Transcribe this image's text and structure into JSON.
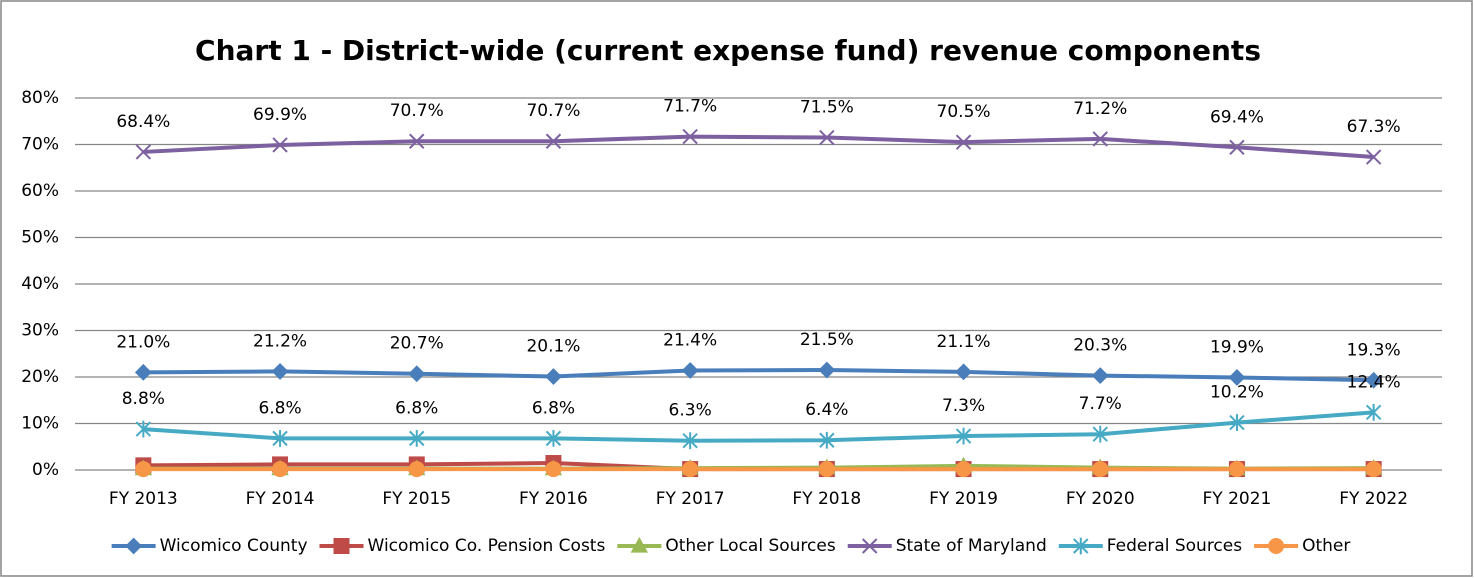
{
  "chart_data": {
    "type": "line",
    "title": "Chart 1 - District-wide (current expense fund) revenue components",
    "categories": [
      "FY 2013",
      "FY 2014",
      "FY 2015",
      "FY 2016",
      "FY 2017",
      "FY 2018",
      "FY 2019",
      "FY 2020",
      "FY 2021",
      "FY 2022"
    ],
    "ylim": [
      0,
      80
    ],
    "yticks": [
      {
        "value": 0,
        "label": "0%"
      },
      {
        "value": 10,
        "label": "10%"
      },
      {
        "value": 20,
        "label": "20%"
      },
      {
        "value": 30,
        "label": "30%"
      },
      {
        "value": 40,
        "label": "40%"
      },
      {
        "value": 50,
        "label": "50%"
      },
      {
        "value": 60,
        "label": "60%"
      },
      {
        "value": 70,
        "label": "70%"
      },
      {
        "value": 80,
        "label": "80%"
      }
    ],
    "grid": true,
    "legend": "bottom",
    "series": [
      {
        "name": "Wicomico County",
        "color": "#4a7ebb",
        "marker": "diamond",
        "values": [
          21.0,
          21.2,
          20.7,
          20.1,
          21.4,
          21.5,
          21.1,
          20.3,
          19.9,
          19.3
        ],
        "value_labels": [
          "21.0%",
          "21.2%",
          "20.7%",
          "20.1%",
          "21.4%",
          "21.5%",
          "21.1%",
          "20.3%",
          "19.9%",
          "19.3%"
        ]
      },
      {
        "name": "Wicomico Co. Pension Costs",
        "color": "#be4b48",
        "marker": "square",
        "values": [
          1.0,
          1.2,
          1.2,
          1.5,
          0.2,
          0.2,
          0.2,
          0.2,
          0.2,
          0.2
        ]
      },
      {
        "name": "Other Local Sources",
        "color": "#98b954",
        "marker": "triangle",
        "values": [
          0.3,
          0.3,
          0.3,
          0.3,
          0.4,
          0.5,
          0.9,
          0.5,
          0.3,
          0.4
        ]
      },
      {
        "name": "State of Maryland",
        "color": "#7d60a0",
        "marker": "x",
        "values": [
          68.4,
          69.9,
          70.7,
          70.7,
          71.7,
          71.5,
          70.5,
          71.2,
          69.4,
          67.3
        ],
        "value_labels": [
          "68.4%",
          "69.9%",
          "70.7%",
          "70.7%",
          "71.7%",
          "71.5%",
          "70.5%",
          "71.2%",
          "69.4%",
          "67.3%"
        ]
      },
      {
        "name": "Federal Sources",
        "color": "#46aac5",
        "marker": "star",
        "values": [
          8.8,
          6.8,
          6.8,
          6.8,
          6.3,
          6.4,
          7.3,
          7.7,
          10.2,
          12.4
        ],
        "value_labels": [
          "8.8%",
          "6.8%",
          "6.8%",
          "6.8%",
          "6.3%",
          "6.4%",
          "7.3%",
          "7.7%",
          "10.2%",
          "12.4%"
        ]
      },
      {
        "name": "Other",
        "color": "#f79646",
        "marker": "circle",
        "values": [
          0.2,
          0.2,
          0.2,
          0.2,
          0.2,
          0.2,
          0.2,
          0.2,
          0.2,
          0.2
        ]
      }
    ]
  }
}
